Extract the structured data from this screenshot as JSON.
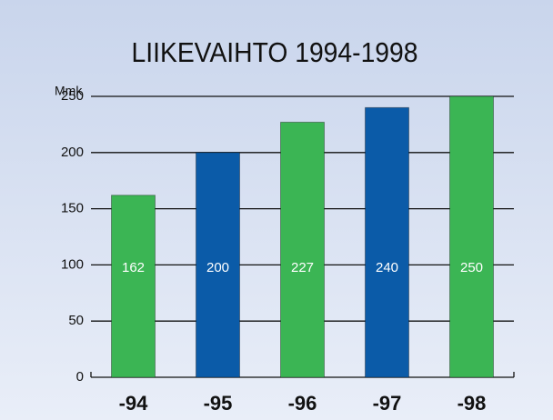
{
  "chart_data": {
    "type": "bar",
    "title": "LIIKEVAIHTO 1994-1998",
    "y_label": "Mmk",
    "categories": [
      "-94",
      "-95",
      "-96",
      "-97",
      "-98"
    ],
    "values": [
      162,
      200,
      227,
      240,
      250
    ],
    "colors": [
      "#3bb554",
      "#0b5ba8",
      "#3bb554",
      "#0b5ba8",
      "#3bb554"
    ],
    "ylim": [
      0,
      250
    ],
    "yticks": [
      0,
      50,
      100,
      150,
      200,
      250
    ],
    "grid": true
  }
}
